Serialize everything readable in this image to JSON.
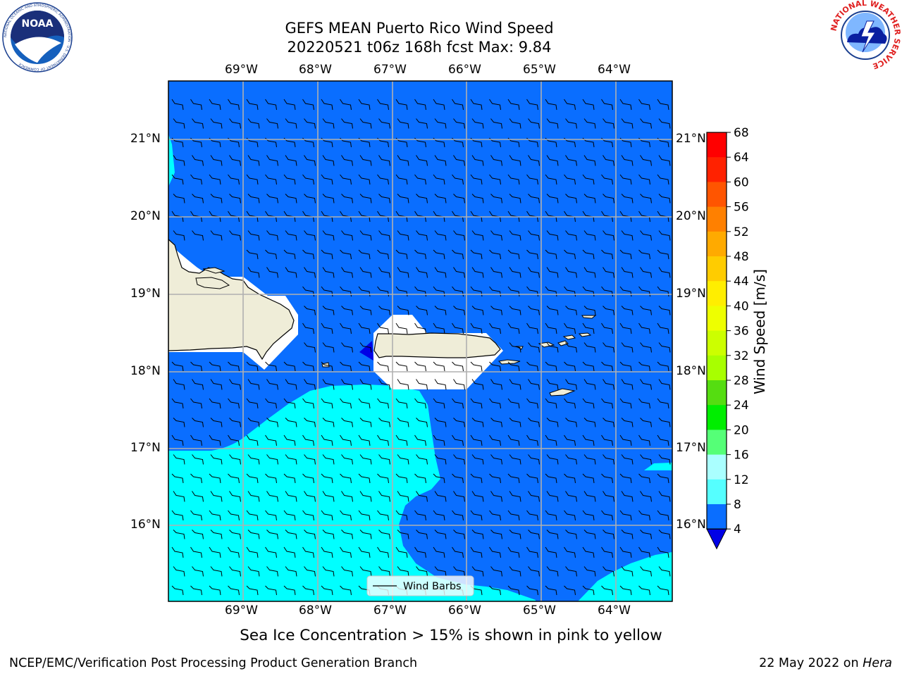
{
  "header": {
    "title_line1": "GEFS MEAN Puerto Rico Wind Speed",
    "title_line2": "20220521 t06z 168h fcst   Max: 9.84"
  },
  "logos": {
    "noara_text": "NOAA",
    "noaa_ring_text": "NATIONAL OCEANIC AND ATMOSPHERIC ADMINISTRATION · U.S. DEPARTMENT OF COMMERCE",
    "nws_ring_text": "NATIONAL WEATHER SERVICE"
  },
  "map": {
    "lon_ticks": [
      "69°W",
      "68°W",
      "67°W",
      "66°W",
      "65°W",
      "64°W"
    ],
    "lat_ticks": [
      "21°N",
      "20°N",
      "19°N",
      "18°N",
      "17°N",
      "16°N"
    ],
    "legend_label": "Wind Barbs",
    "colors": {
      "ocean_low": "#0a6eff",
      "ocean_mid": "#00ffff",
      "land": "#efedd8",
      "pocket": "#0000e6"
    }
  },
  "colorbar": {
    "label": "Wind Speed [m/s]",
    "ticks": [
      "68",
      "64",
      "60",
      "56",
      "52",
      "48",
      "44",
      "40",
      "36",
      "32",
      "28",
      "24",
      "20",
      "16",
      "12",
      "8",
      "4"
    ],
    "colors": [
      "#ff0000",
      "#ff2200",
      "#ff5500",
      "#ff8000",
      "#ffaa00",
      "#ffcc00",
      "#ffee00",
      "#eeff00",
      "#ccff00",
      "#a8ff00",
      "#55dd11",
      "#00ee00",
      "#55ff77",
      "#aaffff",
      "#55ffff",
      "#00ffff",
      "#0a6eff"
    ],
    "extend_color": "#0000e6"
  },
  "subtitle": "Sea Ice Concentration > 15% is shown in pink to yellow",
  "footer": {
    "left": "NCEP/EMC/Verification Post Processing Product Generation Branch",
    "date": "22 May 2022 on ",
    "machine": "Hera"
  }
}
